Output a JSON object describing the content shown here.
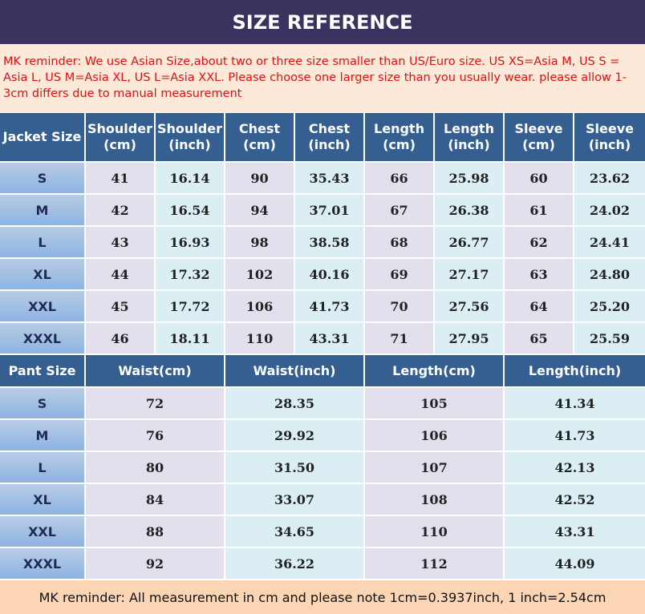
{
  "header": {
    "title": "SIZE REFERENCE",
    "reminder": "MK reminder: We use Asian Size,about two or three size smaller than US/Euro size. US XS=Asia M,  US S = Asia L,  US M=Asia XL,  US L=Asia XXL. Please choose one larger size than you usually wear. please allow 1-3cm differs due to manual measurement"
  },
  "jacket_table": {
    "columns": [
      "Jacket Size",
      "Shoulder\n(cm)",
      "Shoulder\n(inch)",
      "Chest\n(cm)",
      "Chest\n(inch)",
      "Length\n(cm)",
      "Length\n(inch)",
      "Sleeve\n(cm)",
      "Sleeve\n(inch)"
    ],
    "rows": [
      [
        "S",
        "41",
        "16.14",
        "90",
        "35.43",
        "66",
        "25.98",
        "60",
        "23.62"
      ],
      [
        "M",
        "42",
        "16.54",
        "94",
        "37.01",
        "67",
        "26.38",
        "61",
        "24.02"
      ],
      [
        "L",
        "43",
        "16.93",
        "98",
        "38.58",
        "68",
        "26.77",
        "62",
        "24.41"
      ],
      [
        "XL",
        "44",
        "17.32",
        "102",
        "40.16",
        "69",
        "27.17",
        "63",
        "24.80"
      ],
      [
        "XXL",
        "45",
        "17.72",
        "106",
        "41.73",
        "70",
        "27.56",
        "64",
        "25.20"
      ],
      [
        "XXXL",
        "46",
        "18.11",
        "110",
        "43.31",
        "71",
        "27.95",
        "65",
        "25.59"
      ]
    ]
  },
  "pant_table": {
    "columns": [
      "Pant Size",
      "Waist(cm)",
      "Waist(inch)",
      "Length(cm)",
      "Length(inch)"
    ],
    "rows": [
      [
        "S",
        "72",
        "28.35",
        "105",
        "41.34"
      ],
      [
        "M",
        "76",
        "29.92",
        "106",
        "41.73"
      ],
      [
        "L",
        "80",
        "31.50",
        "107",
        "42.13"
      ],
      [
        "XL",
        "84",
        "33.07",
        "108",
        "42.52"
      ],
      [
        "XXL",
        "88",
        "34.65",
        "110",
        "43.31"
      ],
      [
        "XXXL",
        "92",
        "36.22",
        "112",
        "44.09"
      ]
    ]
  },
  "footer": {
    "note": "MK reminder: All measurement in cm and please note 1cm=0.3937inch, 1 inch=2.54cm"
  }
}
